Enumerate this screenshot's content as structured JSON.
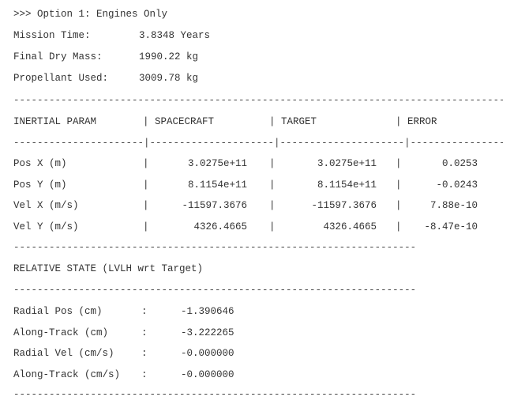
{
  "header": {
    "title": ">>> Option 1: Engines Only",
    "summary": [
      {
        "label": "Mission Time:",
        "value": "3.8348 Years"
      },
      {
        "label": "Final Dry Mass:",
        "value": "1990.22 kg"
      },
      {
        "label": "Propellant Used:",
        "value": "3009.78 kg"
      }
    ]
  },
  "inertial_table": {
    "columns": [
      "INERTIAL PARAM",
      "SPACECRAFT",
      "TARGET",
      "ERROR"
    ],
    "rows": [
      {
        "param": "Pos X (m)",
        "spacecraft": "3.0275e+11",
        "target": "3.0275e+11",
        "error": "0.0253"
      },
      {
        "param": "Pos Y (m)",
        "spacecraft": "8.1154e+11",
        "target": "8.1154e+11",
        "error": "-0.0243"
      },
      {
        "param": "Vel X (m/s)",
        "spacecraft": "-11597.3676",
        "target": "-11597.3676",
        "error": "7.88e-10"
      },
      {
        "param": "Vel Y (m/s)",
        "spacecraft": "4326.4665",
        "target": "4326.4665",
        "error": "-8.47e-10"
      }
    ]
  },
  "relative_state": {
    "title": "RELATIVE STATE (LVLH wrt Target)",
    "rows": [
      {
        "label": "Radial Pos (cm)",
        "value": "-1.390646"
      },
      {
        "label": "Along-Track (cm)",
        "value": "-3.222265"
      },
      {
        "label": "Radial Vel (cm/s)",
        "value": "-0.000000"
      },
      {
        "label": "Along-Track (cm/s)",
        "value": "-0.000000"
      }
    ]
  }
}
